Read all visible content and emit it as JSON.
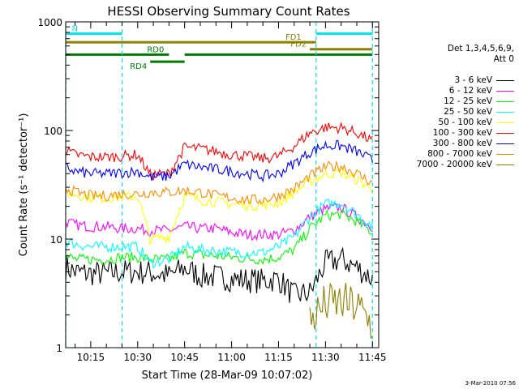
{
  "chart_data": {
    "type": "line",
    "title": "HESSI Observing Summary Count Rates",
    "xlabel": "Start Time (28-Mar-09 10:07:02)",
    "ylabel": "Count Rate (s⁻¹ detector⁻¹)",
    "y_scale": "log",
    "ylim": [
      1,
      1000
    ],
    "xlim": [
      "10:07",
      "11:47"
    ],
    "yticks": [
      "1",
      "10",
      "100",
      "1000"
    ],
    "xticks": [
      "10:15",
      "10:30",
      "10:45",
      "11:00",
      "11:15",
      "11:30",
      "11:45"
    ],
    "grid": false,
    "legend_position": "right",
    "legend_header": [
      "Det 1,3,4,5,6,9,",
      "Att 0"
    ],
    "footer": "3-Mar-2010 07:56",
    "vlines_cyan": [
      "10:07",
      "10:25",
      "11:27",
      "11:45"
    ],
    "flag_bars": [
      {
        "label": "N",
        "color": "#00e5ee",
        "level": 780,
        "segments": [
          [
            "10:07",
            "10:25"
          ],
          [
            "11:27",
            "11:45"
          ]
        ]
      },
      {
        "label": "FD1",
        "color": "#8b8000",
        "level": 650,
        "segments": [
          [
            "10:07",
            "11:27"
          ]
        ]
      },
      {
        "label": "FD2",
        "color": "#8b8000",
        "level": 560,
        "segments": [
          [
            "11:25",
            "11:45"
          ]
        ]
      },
      {
        "label": "RD0",
        "color": "#007a00",
        "level": 500,
        "segments": [
          [
            "10:07",
            "10:40"
          ],
          [
            "10:45",
            "11:45"
          ]
        ]
      },
      {
        "label": "RD4",
        "color": "#007a00",
        "level": 430,
        "segments": [
          [
            "10:34",
            "10:45"
          ]
        ]
      }
    ],
    "series": [
      {
        "name": "3 - 6 keV",
        "color": "#000000",
        "x": [
          "10:07",
          "10:10",
          "10:15",
          "10:20",
          "10:25",
          "10:30",
          "10:34",
          "10:40",
          "10:45",
          "10:50",
          "10:55",
          "11:00",
          "11:05",
          "11:10",
          "11:15",
          "11:20",
          "11:25",
          "11:30",
          "11:35",
          "11:40",
          "11:45"
        ],
        "values": [
          5.5,
          5,
          4.8,
          4.8,
          5,
          5,
          4.9,
          4.6,
          5.4,
          4.6,
          4.5,
          4.3,
          4.2,
          4.1,
          4.3,
          3,
          3.2,
          6,
          6.5,
          5.5,
          4.3
        ]
      },
      {
        "name": "6 - 12 keV",
        "color": "#ff00ff",
        "x": [
          "10:07",
          "10:10",
          "10:15",
          "10:20",
          "10:25",
          "10:30",
          "10:34",
          "10:40",
          "10:45",
          "10:50",
          "10:55",
          "11:00",
          "11:05",
          "11:10",
          "11:15",
          "11:20",
          "11:25",
          "11:30",
          "11:35",
          "11:40",
          "11:45"
        ],
        "values": [
          14.5,
          13.5,
          13,
          13,
          12.5,
          12.5,
          12,
          12,
          13,
          12.5,
          12.5,
          11.5,
          11,
          11,
          11,
          12,
          16,
          19,
          19.5,
          16,
          13
        ]
      },
      {
        "name": "12 - 25 keV",
        "color": "#00ff00",
        "x": [
          "10:07",
          "10:10",
          "10:15",
          "10:20",
          "10:25",
          "10:30",
          "10:34",
          "10:40",
          "10:45",
          "10:50",
          "10:55",
          "11:00",
          "11:05",
          "11:10",
          "11:15",
          "11:20",
          "11:25",
          "11:30",
          "11:35",
          "11:40",
          "11:45"
        ],
        "values": [
          7,
          6.5,
          6.5,
          6.5,
          6.8,
          6.8,
          6.5,
          6.5,
          7.5,
          7.2,
          7,
          6.8,
          6.6,
          6.5,
          6.8,
          8,
          12.5,
          16.5,
          17,
          14.5,
          11.5
        ]
      },
      {
        "name": "25 - 50 keV",
        "color": "#00ffff",
        "x": [
          "10:07",
          "10:10",
          "10:15",
          "10:20",
          "10:25",
          "10:30",
          "10:34",
          "10:40",
          "10:45",
          "10:50",
          "10:55",
          "11:00",
          "11:05",
          "11:10",
          "11:15",
          "11:20",
          "11:25",
          "11:30",
          "11:35",
          "11:40",
          "11:45"
        ],
        "values": [
          9.5,
          9,
          8.5,
          8.5,
          8.5,
          8.5,
          6,
          6.5,
          8.5,
          8,
          7.8,
          7.6,
          7.5,
          7.5,
          8.5,
          10.5,
          16,
          21,
          21.5,
          17,
          13
        ]
      },
      {
        "name": "50 - 100 keV",
        "color": "#ffff00",
        "x": [
          "10:07",
          "10:10",
          "10:15",
          "10:20",
          "10:25",
          "10:30",
          "10:34",
          "10:40",
          "10:45",
          "10:50",
          "10:55",
          "11:00",
          "11:05",
          "11:10",
          "11:15",
          "11:20",
          "11:25",
          "11:30",
          "11:35",
          "11:40",
          "11:45"
        ],
        "values": [
          27,
          26,
          24,
          24,
          24.5,
          25,
          10,
          10.5,
          25,
          23,
          22,
          21,
          20.5,
          20.5,
          21.5,
          27,
          34,
          40,
          41,
          35,
          29
        ]
      },
      {
        "name": "100 - 300 keV",
        "color": "#ff0000",
        "x": [
          "10:07",
          "10:10",
          "10:15",
          "10:20",
          "10:25",
          "10:30",
          "10:34",
          "10:40",
          "10:45",
          "10:50",
          "10:55",
          "11:00",
          "11:05",
          "11:10",
          "11:15",
          "11:20",
          "11:25",
          "11:30",
          "11:35",
          "11:40",
          "11:45"
        ],
        "values": [
          65,
          60,
          57,
          57,
          58,
          60,
          39,
          40,
          70,
          68,
          64,
          60,
          58,
          55,
          58,
          72,
          95,
          107,
          106,
          95,
          80
        ]
      },
      {
        "name": "300 - 800 keV",
        "color": "#0000ff",
        "x": [
          "10:07",
          "10:10",
          "10:15",
          "10:20",
          "10:25",
          "10:30",
          "10:34",
          "10:40",
          "10:45",
          "10:50",
          "10:55",
          "11:00",
          "11:05",
          "11:10",
          "11:15",
          "11:20",
          "11:25",
          "11:30",
          "11:35",
          "11:40",
          "11:45"
        ],
        "values": [
          46,
          42,
          40,
          40,
          41,
          42,
          37,
          38,
          49,
          46,
          44,
          42,
          40,
          38,
          40,
          50,
          63,
          73,
          72,
          64,
          53
        ]
      },
      {
        "name": "800 - 7000 keV",
        "color": "#ff8c00",
        "x": [
          "10:07",
          "10:10",
          "10:15",
          "10:20",
          "10:25",
          "10:30",
          "10:34",
          "10:40",
          "10:45",
          "10:50",
          "10:55",
          "11:00",
          "11:05",
          "11:10",
          "11:15",
          "11:20",
          "11:25",
          "11:30",
          "11:35",
          "11:40",
          "11:45"
        ],
        "values": [
          30,
          27,
          25,
          25,
          26,
          26,
          27,
          27,
          28,
          27,
          25,
          24,
          23,
          23,
          25,
          29,
          38,
          46,
          47,
          40,
          33
        ]
      },
      {
        "name": "7000 - 20000 keV",
        "color": "#8b8000",
        "x": [
          "11:25",
          "11:30",
          "11:35",
          "11:40",
          "11:45"
        ],
        "values": [
          1.8,
          2.5,
          2.6,
          2.4,
          1.6
        ]
      }
    ]
  }
}
